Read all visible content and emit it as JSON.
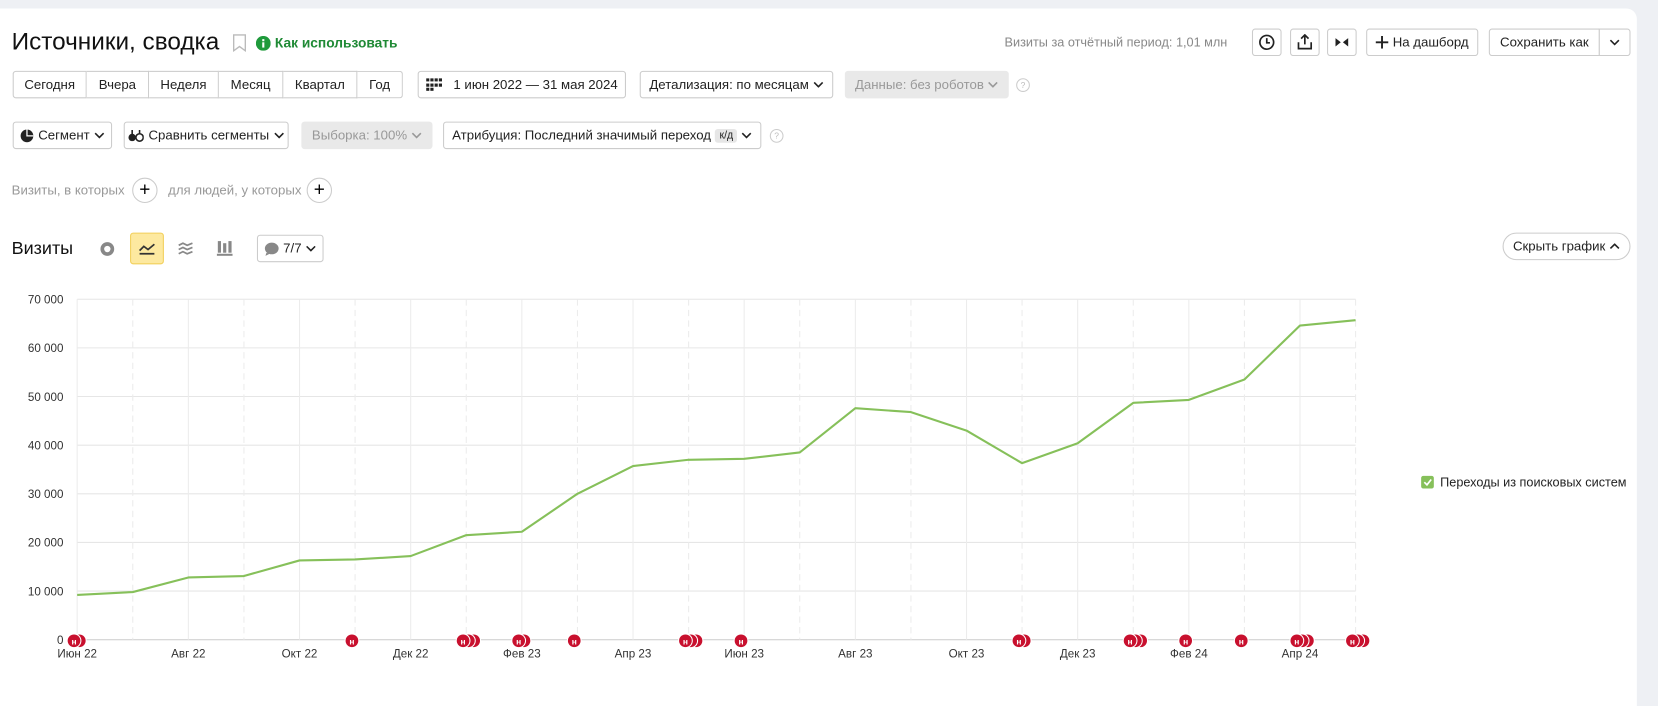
{
  "header": {
    "title": "Источники, сводка",
    "help_link": "Как использовать",
    "visits_summary": "Визиты за отчётный период: 1,01 млн",
    "dashboard_button": "На дашборд",
    "save_button": "Сохранить как"
  },
  "periods": [
    "Сегодня",
    "Вчера",
    "Неделя",
    "Месяц",
    "Квартал",
    "Год"
  ],
  "date_range": "1 июн 2022 — 31 мая 2024",
  "detail": "Детализация: по месяцам",
  "data_filter": "Данные: без роботов",
  "segment": "Сегмент",
  "compare": "Сравнить сегменты",
  "sample": "Выборка: 100%",
  "attribution": "Атрибуция: Последний значимый переход",
  "attribution_badge": "к/д",
  "filters": {
    "visits": "Визиты, в которых",
    "people": "для людей, у которых"
  },
  "chart_panel": {
    "title": "Визиты",
    "notes_count": "7/7",
    "hide_button": "Скрыть график"
  },
  "chart_data": {
    "type": "line",
    "categories": [
      "Июн 22",
      null,
      "Авг 22",
      null,
      "Окт 22",
      null,
      "Дек 22",
      null,
      "Фев 23",
      null,
      "Апр 23",
      null,
      "Июн 23",
      null,
      "Авг 23",
      null,
      "Окт 23",
      null,
      "Дек 23",
      null,
      "Фев 24",
      null,
      "Апр 24",
      null
    ],
    "series": [
      {
        "name": "Переходы из поисковых систем",
        "color": "#86c05a",
        "values": [
          9200,
          9800,
          12800,
          13100,
          16300,
          16500,
          17200,
          21500,
          22200,
          30000,
          35700,
          37000,
          37200,
          38500,
          47600,
          46800,
          43000,
          36300,
          40400,
          48700,
          49300,
          53500,
          64600,
          65700
        ]
      }
    ],
    "ylim": [
      0,
      70000
    ],
    "yticks": [
      0,
      {
        "value": 10000,
        "label": "10 000"
      },
      {
        "value": 20000,
        "label": "20 000"
      },
      {
        "value": 30000,
        "label": "30 000"
      },
      {
        "value": 40000,
        "label": "40 000"
      },
      {
        "value": 50000,
        "label": "50 000"
      },
      {
        "value": 60000,
        "label": "60 000"
      },
      {
        "value": 70000,
        "label": "70 000"
      }
    ],
    "grid": true,
    "note_marker": "н"
  }
}
